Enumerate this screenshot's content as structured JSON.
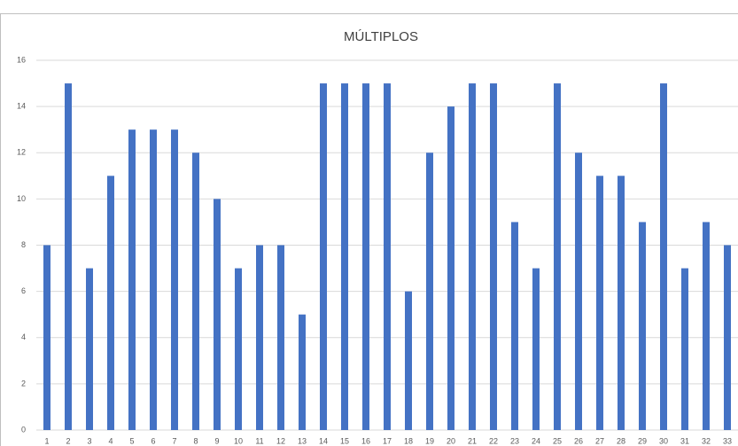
{
  "chart_data": {
    "type": "bar",
    "title": "MÚLTIPLOS",
    "categories": [
      "1",
      "2",
      "3",
      "4",
      "5",
      "6",
      "7",
      "8",
      "9",
      "10",
      "11",
      "12",
      "13",
      "14",
      "15",
      "16",
      "17",
      "18",
      "19",
      "20",
      "21",
      "22",
      "23",
      "24",
      "25",
      "26",
      "27",
      "28",
      "29",
      "30",
      "31",
      "32",
      "33"
    ],
    "values": [
      8,
      15,
      7,
      11,
      13,
      13,
      13,
      12,
      10,
      7,
      8,
      8,
      5,
      15,
      15,
      15,
      15,
      6,
      12,
      14,
      15,
      15,
      9,
      7,
      15,
      12,
      11,
      11,
      9,
      15,
      7,
      9,
      8
    ],
    "color": "#4472c4",
    "ylim": [
      0,
      16
    ],
    "yticks": [
      0,
      2,
      4,
      6,
      8,
      10,
      12,
      14,
      16
    ],
    "grid": true
  }
}
